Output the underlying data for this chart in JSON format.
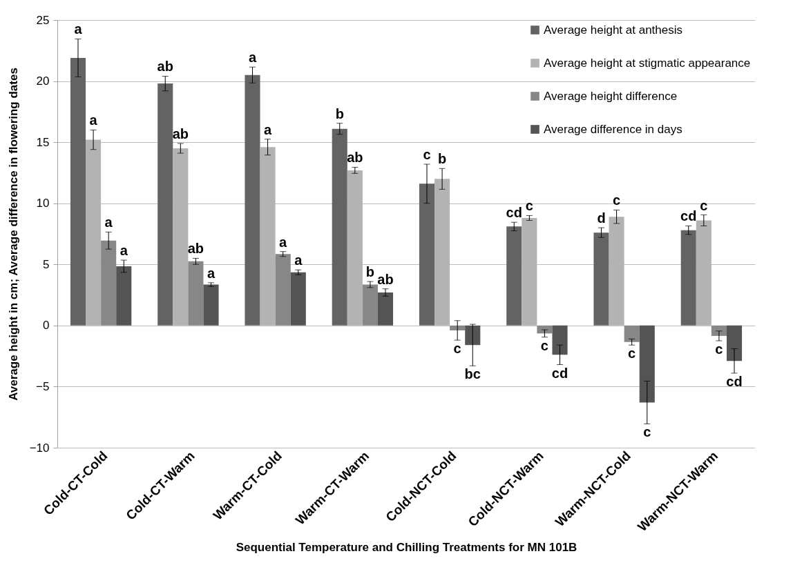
{
  "chart_data": {
    "type": "bar",
    "xlabel": "Sequential Temperature and Chilling Treatments for MN 101B",
    "ylabel": "Average height in cm; Average difference in flowering dates",
    "categories": [
      "Cold-CT-Cold",
      "Cold-CT-Warm",
      "Warm-CT-Cold",
      "Warm-CT-Warm",
      "Cold-NCT-Cold",
      "Cold-NCT-Warm",
      "Warm-NCT-Cold",
      "Warm-NCT-Warm"
    ],
    "series": [
      {
        "name": "Average height at anthesis",
        "color": "#636363",
        "values": [
          21.9,
          19.8,
          20.5,
          16.1,
          11.6,
          8.1,
          7.6,
          7.8
        ],
        "errors": [
          1.55,
          0.6,
          0.65,
          0.45,
          1.6,
          0.35,
          0.4,
          0.35
        ],
        "value_labels": [
          "a",
          "ab",
          "a",
          "b",
          "c",
          "cd",
          "d",
          "cd"
        ]
      },
      {
        "name": "Average height at stigmatic appearance",
        "color": "#b3b3b3",
        "values": [
          15.2,
          14.5,
          14.6,
          12.7,
          12.0,
          8.8,
          8.9,
          8.6
        ],
        "errors": [
          0.8,
          0.4,
          0.65,
          0.25,
          0.85,
          0.2,
          0.55,
          0.45
        ],
        "value_labels": [
          "a",
          "ab",
          "a",
          "ab",
          "b",
          "c",
          "c",
          "c"
        ]
      },
      {
        "name": "Average height difference",
        "color": "#878787",
        "values": [
          6.95,
          5.25,
          5.85,
          3.35,
          -0.4,
          -0.65,
          -1.35,
          -0.85
        ],
        "errors": [
          0.7,
          0.25,
          0.2,
          0.25,
          0.8,
          0.3,
          0.25,
          0.4
        ],
        "value_labels": [
          "a",
          "ab",
          "a",
          "b",
          "c",
          "c",
          "c",
          "c"
        ]
      },
      {
        "name": "Average difference in days",
        "color": "#545454",
        "values": [
          4.85,
          3.35,
          4.35,
          2.7,
          -1.6,
          -2.4,
          -6.3,
          -2.9
        ],
        "errors": [
          0.5,
          0.15,
          0.2,
          0.3,
          1.7,
          0.8,
          1.75,
          1.0
        ],
        "value_labels": [
          "a",
          "a",
          "a",
          "ab",
          "bc",
          "cd",
          "c",
          "cd"
        ]
      }
    ],
    "ylim": [
      -10,
      25
    ],
    "yticks": [
      -10,
      -5,
      0,
      5,
      10,
      15,
      20,
      25
    ],
    "grid": "y",
    "legend": "top right"
  }
}
